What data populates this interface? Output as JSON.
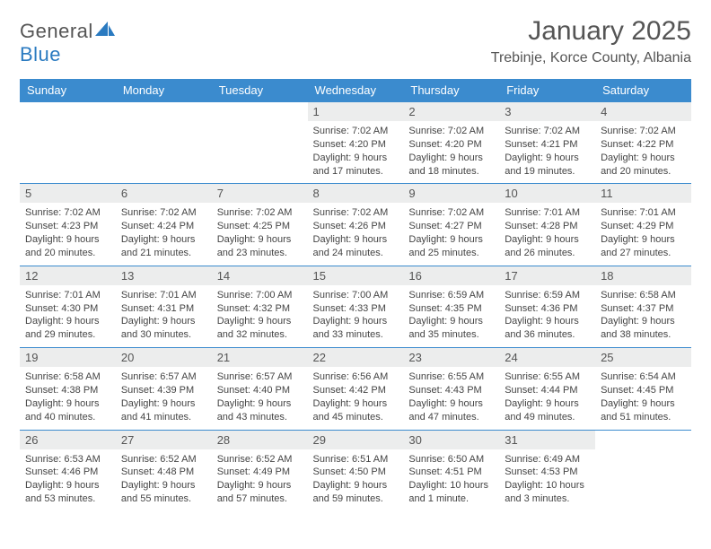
{
  "brand": {
    "part1": "General",
    "part2": "Blue"
  },
  "title": "January 2025",
  "location": "Trebinje, Korce County, Albania",
  "colors": {
    "header_bg": "#3b8bce",
    "header_text": "#ffffff",
    "daynum_bg": "#eceded",
    "row_border": "#3b8bce",
    "text": "#444444",
    "title_text": "#555555"
  },
  "weekdays": [
    "Sunday",
    "Monday",
    "Tuesday",
    "Wednesday",
    "Thursday",
    "Friday",
    "Saturday"
  ],
  "layout": {
    "columns": 7,
    "rows": 5,
    "first_weekday_index": 3
  },
  "days": [
    {
      "n": "1",
      "sunrise": "7:02 AM",
      "sunset": "4:20 PM",
      "hours": "9",
      "minutes": "17"
    },
    {
      "n": "2",
      "sunrise": "7:02 AM",
      "sunset": "4:20 PM",
      "hours": "9",
      "minutes": "18"
    },
    {
      "n": "3",
      "sunrise": "7:02 AM",
      "sunset": "4:21 PM",
      "hours": "9",
      "minutes": "19"
    },
    {
      "n": "4",
      "sunrise": "7:02 AM",
      "sunset": "4:22 PM",
      "hours": "9",
      "minutes": "20"
    },
    {
      "n": "5",
      "sunrise": "7:02 AM",
      "sunset": "4:23 PM",
      "hours": "9",
      "minutes": "20"
    },
    {
      "n": "6",
      "sunrise": "7:02 AM",
      "sunset": "4:24 PM",
      "hours": "9",
      "minutes": "21"
    },
    {
      "n": "7",
      "sunrise": "7:02 AM",
      "sunset": "4:25 PM",
      "hours": "9",
      "minutes": "23"
    },
    {
      "n": "8",
      "sunrise": "7:02 AM",
      "sunset": "4:26 PM",
      "hours": "9",
      "minutes": "24"
    },
    {
      "n": "9",
      "sunrise": "7:02 AM",
      "sunset": "4:27 PM",
      "hours": "9",
      "minutes": "25"
    },
    {
      "n": "10",
      "sunrise": "7:01 AM",
      "sunset": "4:28 PM",
      "hours": "9",
      "minutes": "26"
    },
    {
      "n": "11",
      "sunrise": "7:01 AM",
      "sunset": "4:29 PM",
      "hours": "9",
      "minutes": "27"
    },
    {
      "n": "12",
      "sunrise": "7:01 AM",
      "sunset": "4:30 PM",
      "hours": "9",
      "minutes": "29"
    },
    {
      "n": "13",
      "sunrise": "7:01 AM",
      "sunset": "4:31 PM",
      "hours": "9",
      "minutes": "30"
    },
    {
      "n": "14",
      "sunrise": "7:00 AM",
      "sunset": "4:32 PM",
      "hours": "9",
      "minutes": "32"
    },
    {
      "n": "15",
      "sunrise": "7:00 AM",
      "sunset": "4:33 PM",
      "hours": "9",
      "minutes": "33"
    },
    {
      "n": "16",
      "sunrise": "6:59 AM",
      "sunset": "4:35 PM",
      "hours": "9",
      "minutes": "35"
    },
    {
      "n": "17",
      "sunrise": "6:59 AM",
      "sunset": "4:36 PM",
      "hours": "9",
      "minutes": "36"
    },
    {
      "n": "18",
      "sunrise": "6:58 AM",
      "sunset": "4:37 PM",
      "hours": "9",
      "minutes": "38"
    },
    {
      "n": "19",
      "sunrise": "6:58 AM",
      "sunset": "4:38 PM",
      "hours": "9",
      "minutes": "40"
    },
    {
      "n": "20",
      "sunrise": "6:57 AM",
      "sunset": "4:39 PM",
      "hours": "9",
      "minutes": "41"
    },
    {
      "n": "21",
      "sunrise": "6:57 AM",
      "sunset": "4:40 PM",
      "hours": "9",
      "minutes": "43"
    },
    {
      "n": "22",
      "sunrise": "6:56 AM",
      "sunset": "4:42 PM",
      "hours": "9",
      "minutes": "45"
    },
    {
      "n": "23",
      "sunrise": "6:55 AM",
      "sunset": "4:43 PM",
      "hours": "9",
      "minutes": "47"
    },
    {
      "n": "24",
      "sunrise": "6:55 AM",
      "sunset": "4:44 PM",
      "hours": "9",
      "minutes": "49"
    },
    {
      "n": "25",
      "sunrise": "6:54 AM",
      "sunset": "4:45 PM",
      "hours": "9",
      "minutes": "51"
    },
    {
      "n": "26",
      "sunrise": "6:53 AM",
      "sunset": "4:46 PM",
      "hours": "9",
      "minutes": "53"
    },
    {
      "n": "27",
      "sunrise": "6:52 AM",
      "sunset": "4:48 PM",
      "hours": "9",
      "minutes": "55"
    },
    {
      "n": "28",
      "sunrise": "6:52 AM",
      "sunset": "4:49 PM",
      "hours": "9",
      "minutes": "57"
    },
    {
      "n": "29",
      "sunrise": "6:51 AM",
      "sunset": "4:50 PM",
      "hours": "9",
      "minutes": "59"
    },
    {
      "n": "30",
      "sunrise": "6:50 AM",
      "sunset": "4:51 PM",
      "hours": "10",
      "minutes": "1"
    },
    {
      "n": "31",
      "sunrise": "6:49 AM",
      "sunset": "4:53 PM",
      "hours": "10",
      "minutes": "3"
    }
  ],
  "labels": {
    "sunrise": "Sunrise:",
    "sunset": "Sunset:",
    "daylight": "Daylight:",
    "hours_word": "hours",
    "and_word": "and",
    "minutes_word_singular": "minute.",
    "minutes_word_plural": "minutes."
  }
}
